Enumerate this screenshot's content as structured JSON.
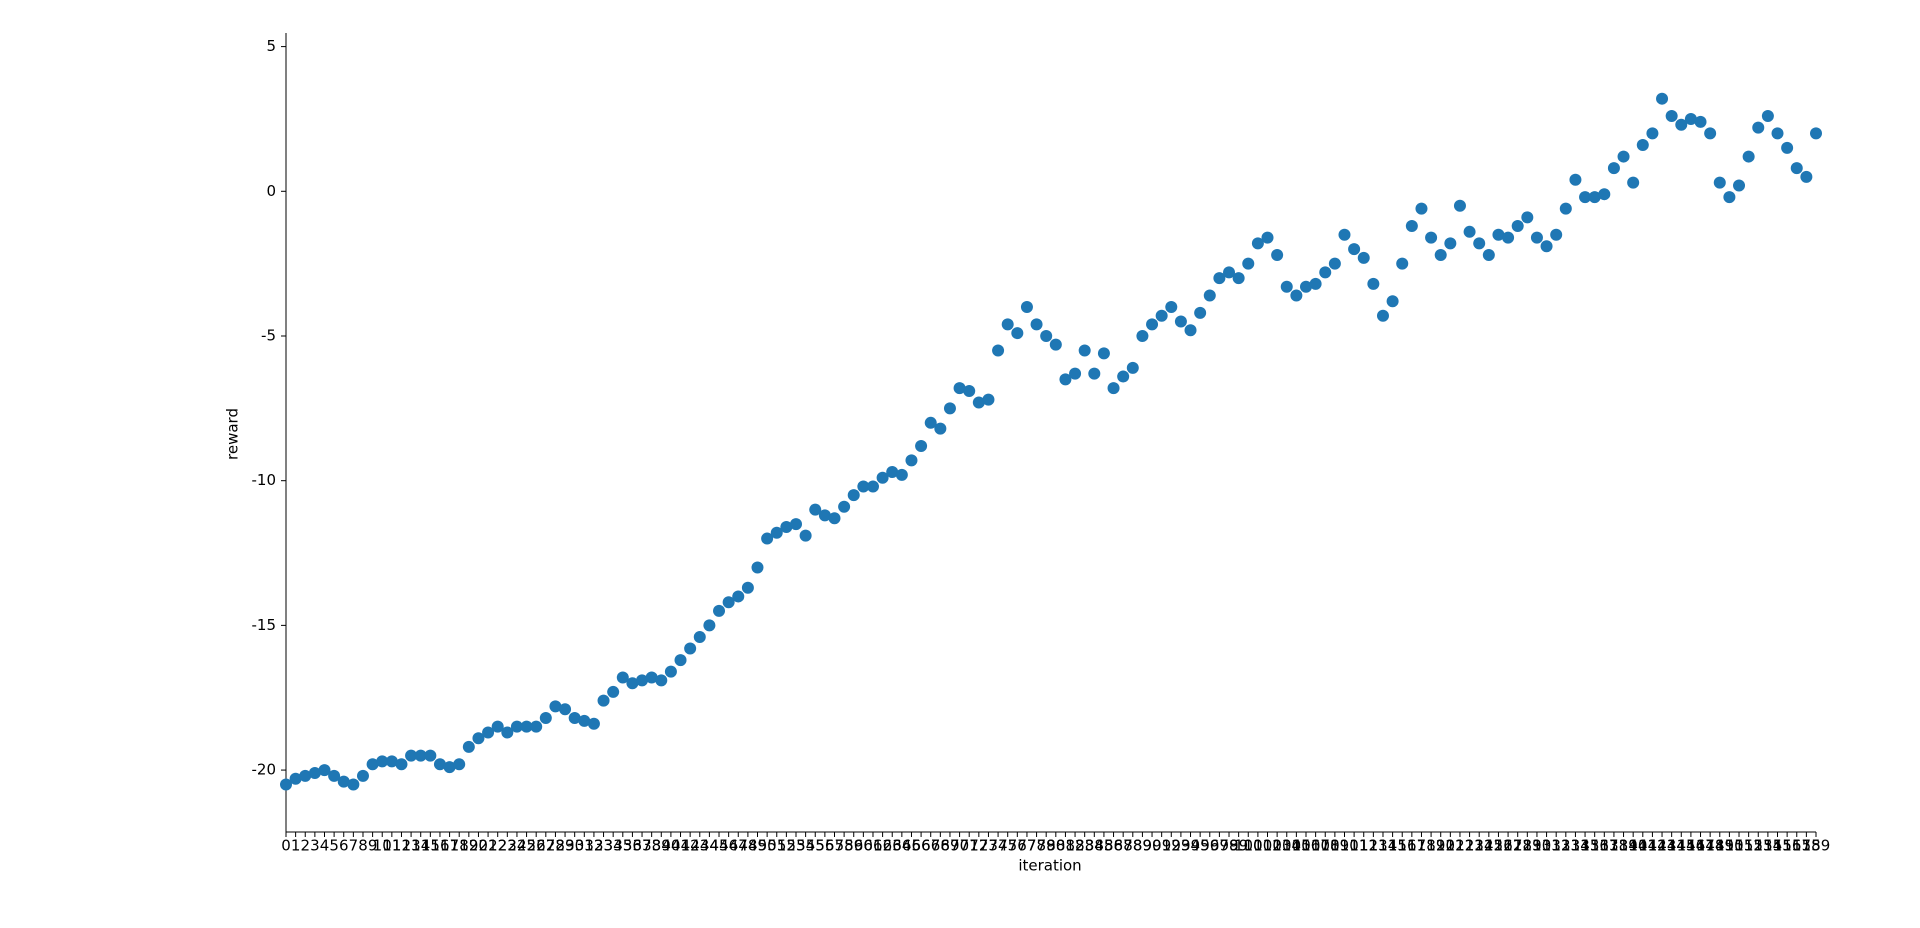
{
  "chart_data": {
    "type": "scatter",
    "x_label": "iteration",
    "y_label": "reward",
    "color": "#1f77b4",
    "categories": [
      "0",
      "1",
      "2",
      "3",
      "4",
      "5",
      "6",
      "7",
      "8",
      "9",
      "10",
      "11",
      "12",
      "13",
      "14",
      "15",
      "16",
      "17",
      "18",
      "19",
      "20",
      "21",
      "22",
      "23",
      "24",
      "25",
      "26",
      "27",
      "28",
      "29",
      "30",
      "31",
      "32",
      "33",
      "34",
      "35",
      "36",
      "37",
      "38",
      "39",
      "40",
      "41",
      "42",
      "43",
      "44",
      "45",
      "46",
      "47",
      "48",
      "49",
      "50",
      "51",
      "52",
      "53",
      "54",
      "55",
      "56",
      "57",
      "58",
      "59",
      "60",
      "61",
      "62",
      "63",
      "64",
      "65",
      "66",
      "67",
      "68",
      "69",
      "70",
      "71",
      "72",
      "73",
      "74",
      "75",
      "76",
      "77",
      "78",
      "79",
      "80",
      "81",
      "82",
      "83",
      "84",
      "85",
      "86",
      "87",
      "88",
      "89",
      "90",
      "91",
      "92",
      "93",
      "94",
      "95",
      "96",
      "97",
      "98",
      "99",
      "100",
      "101",
      "102",
      "103",
      "104",
      "105",
      "106",
      "107",
      "108",
      "109",
      "110",
      "111",
      "112",
      "113",
      "114",
      "115",
      "116",
      "117",
      "118",
      "119",
      "120",
      "121",
      "122",
      "123",
      "124",
      "125",
      "126",
      "127",
      "128",
      "129",
      "130",
      "131",
      "132",
      "133",
      "134",
      "135",
      "136",
      "137",
      "138",
      "139",
      "140",
      "141",
      "142",
      "143",
      "144",
      "145",
      "146",
      "147",
      "148",
      "149",
      "150",
      "151",
      "152",
      "153",
      "154",
      "155",
      "156",
      "157",
      "158",
      "159"
    ],
    "values": [
      -20.5,
      -20.3,
      -20.2,
      -20.1,
      -20.0,
      -20.2,
      -20.4,
      -20.5,
      -20.2,
      -19.8,
      -19.7,
      -19.7,
      -19.8,
      -19.5,
      -19.5,
      -19.5,
      -19.8,
      -19.9,
      -19.8,
      -19.2,
      -18.9,
      -18.7,
      -18.5,
      -18.7,
      -18.5,
      -18.5,
      -18.5,
      -18.2,
      -17.8,
      -17.9,
      -18.2,
      -18.3,
      -18.4,
      -17.6,
      -17.3,
      -16.8,
      -17.0,
      -16.9,
      -16.8,
      -16.9,
      -16.6,
      -16.2,
      -15.8,
      -15.4,
      -15.0,
      -14.5,
      -14.2,
      -14.0,
      -13.7,
      -13.0,
      -12.0,
      -11.8,
      -11.6,
      -11.5,
      -11.9,
      -11.0,
      -11.2,
      -11.3,
      -10.9,
      -10.5,
      -10.2,
      -10.2,
      -9.9,
      -9.7,
      -9.8,
      -9.3,
      -8.8,
      -8.0,
      -8.2,
      -7.5,
      -6.8,
      -6.9,
      -7.3,
      -7.2,
      -5.5,
      -4.6,
      -4.9,
      -4.0,
      -4.6,
      -5.0,
      -5.3,
      -6.5,
      -6.3,
      -5.5,
      -6.3,
      -5.6,
      -6.8,
      -6.4,
      -6.1,
      -5.0,
      -4.6,
      -4.3,
      -4.0,
      -4.5,
      -4.8,
      -4.2,
      -3.6,
      -3.0,
      -2.8,
      -3.0,
      -2.5,
      -1.8,
      -1.6,
      -2.2,
      -3.3,
      -3.6,
      -3.3,
      -3.2,
      -2.8,
      -2.5,
      -1.5,
      -2.0,
      -2.3,
      -3.2,
      -4.3,
      -3.8,
      -2.5,
      -1.2,
      -0.6,
      -1.6,
      -2.2,
      -1.8,
      -0.5,
      -1.4,
      -1.8,
      -2.2,
      -1.5,
      -1.6,
      -1.2,
      -0.9,
      -1.6,
      -1.9,
      -1.5,
      -0.6,
      0.4,
      -0.2,
      -0.2,
      -0.1,
      0.8,
      1.2,
      0.3,
      1.6,
      2.0,
      3.2,
      2.6,
      2.3,
      2.5,
      2.4,
      2.0,
      0.3,
      -0.2,
      0.2,
      1.2,
      2.2,
      2.6,
      2.0,
      1.5,
      0.8,
      0.5,
      2.0
    ],
    "ylim": [
      -22.14,
      5.47
    ],
    "yticks": [
      -20,
      -15,
      -10,
      -5,
      0,
      5
    ],
    "grid": false
  }
}
